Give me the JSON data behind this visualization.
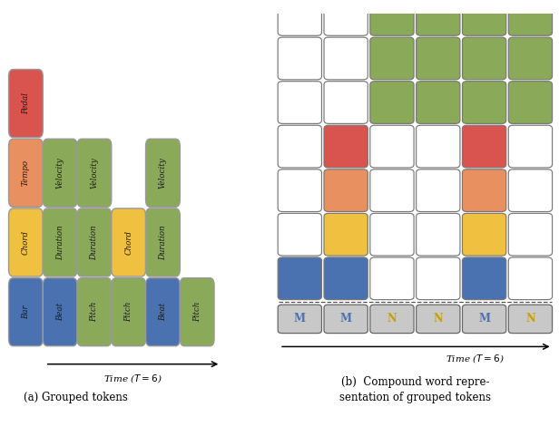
{
  "colors": {
    "pedal": "#d9534f",
    "tempo": "#e89060",
    "velocity": "#8aaa5a",
    "chord": "#f0c040",
    "duration": "#8aaa5a",
    "beat": "#4a72b0",
    "bar": "#4a72b0",
    "pitch": "#8aaa5a",
    "white": "#ffffff",
    "gray": "#c8c8c8",
    "bg": "#ffffff"
  },
  "left_tokens": [
    {
      "label": "Bar",
      "col": 0,
      "row": 0,
      "color": "bar"
    },
    {
      "label": "Beat",
      "col": 1,
      "row": 0,
      "color": "beat"
    },
    {
      "label": "Pitch",
      "col": 2,
      "row": 0,
      "color": "pitch"
    },
    {
      "label": "Pitch",
      "col": 3,
      "row": 0,
      "color": "pitch"
    },
    {
      "label": "Beat",
      "col": 4,
      "row": 0,
      "color": "beat"
    },
    {
      "label": "Pitch",
      "col": 5,
      "row": 0,
      "color": "pitch"
    },
    {
      "label": "Chord",
      "col": 0,
      "row": 1,
      "color": "chord"
    },
    {
      "label": "Duration",
      "col": 1,
      "row": 1,
      "color": "duration"
    },
    {
      "label": "Duration",
      "col": 2,
      "row": 1,
      "color": "duration"
    },
    {
      "label": "Chord",
      "col": 3,
      "row": 1,
      "color": "chord"
    },
    {
      "label": "Duration",
      "col": 4,
      "row": 1,
      "color": "duration"
    },
    {
      "label": "Tempo",
      "col": 0,
      "row": 2,
      "color": "tempo"
    },
    {
      "label": "Velocity",
      "col": 1,
      "row": 2,
      "color": "velocity"
    },
    {
      "label": "Velocity",
      "col": 2,
      "row": 2,
      "color": "velocity"
    },
    {
      "label": "Velocity",
      "col": 4,
      "row": 2,
      "color": "velocity"
    },
    {
      "label": "Pedal",
      "col": 0,
      "row": 3,
      "color": "pedal"
    }
  ],
  "right_grid": {
    "rows": 7,
    "cols": 6,
    "colored_cells": [
      {
        "row": 0,
        "col": 2,
        "color": "velocity"
      },
      {
        "row": 0,
        "col": 3,
        "color": "velocity"
      },
      {
        "row": 0,
        "col": 4,
        "color": "velocity"
      },
      {
        "row": 0,
        "col": 5,
        "color": "velocity"
      },
      {
        "row": 1,
        "col": 2,
        "color": "velocity"
      },
      {
        "row": 1,
        "col": 3,
        "color": "velocity"
      },
      {
        "row": 1,
        "col": 4,
        "color": "velocity"
      },
      {
        "row": 1,
        "col": 5,
        "color": "velocity"
      },
      {
        "row": 2,
        "col": 2,
        "color": "velocity"
      },
      {
        "row": 2,
        "col": 3,
        "color": "velocity"
      },
      {
        "row": 2,
        "col": 4,
        "color": "velocity"
      },
      {
        "row": 2,
        "col": 5,
        "color": "velocity"
      },
      {
        "row": 3,
        "col": 1,
        "color": "pedal"
      },
      {
        "row": 3,
        "col": 4,
        "color": "pedal"
      },
      {
        "row": 4,
        "col": 1,
        "color": "tempo"
      },
      {
        "row": 4,
        "col": 4,
        "color": "tempo"
      },
      {
        "row": 5,
        "col": 1,
        "color": "chord"
      },
      {
        "row": 5,
        "col": 4,
        "color": "chord"
      },
      {
        "row": 6,
        "col": 0,
        "color": "bar"
      },
      {
        "row": 6,
        "col": 1,
        "color": "beat"
      },
      {
        "row": 6,
        "col": 4,
        "color": "beat"
      }
    ],
    "bottom_labels": [
      "M",
      "M",
      "N",
      "N",
      "M",
      "N"
    ]
  },
  "title_a": "(a) Grouped tokens",
  "title_b": "(b)  Compound word repre-\nsentation of grouped tokens",
  "time_label": "Time ($T = 6$)"
}
